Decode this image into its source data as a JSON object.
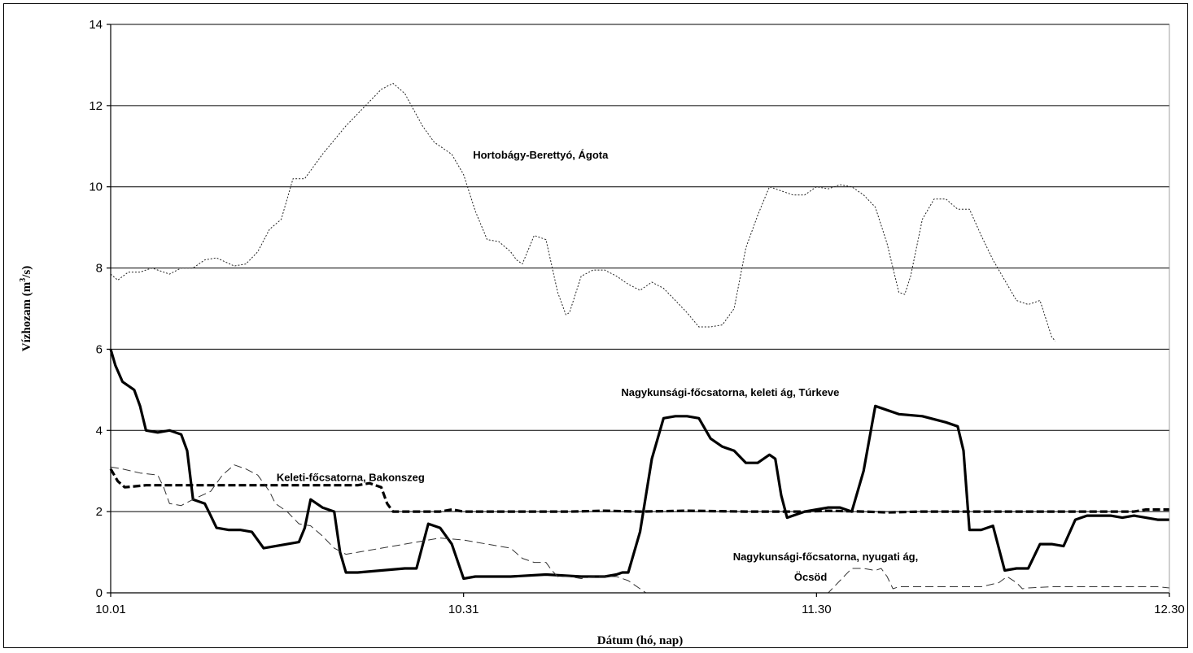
{
  "chart_data": {
    "type": "line",
    "title": "",
    "xlabel": "Dátum (hó, nap)",
    "ylabel": "Vízhozam (m³/s)",
    "ylabel_base": "Vízhozam (m",
    "ylabel_sup": "3",
    "ylabel_end": "/s)",
    "x_range_days": [
      1,
      91
    ],
    "ylim": [
      0,
      14
    ],
    "yticks": [
      0,
      2,
      4,
      6,
      8,
      10,
      12,
      14
    ],
    "xticks": [
      {
        "day": 1,
        "label": "10.01"
      },
      {
        "day": 31,
        "label": "10.31"
      },
      {
        "day": 61,
        "label": "11.30"
      },
      {
        "day": 91,
        "label": "12.30"
      }
    ],
    "grid": "horizontal",
    "legend": "none",
    "series": [
      {
        "name": "Hortobágy-Berettyó, Ágota",
        "style": "dotted",
        "points": [
          [
            1,
            7.85
          ],
          [
            1.6,
            7.7
          ],
          [
            2.5,
            7.9
          ],
          [
            3.5,
            7.9
          ],
          [
            4.5,
            8.0
          ],
          [
            6,
            7.85
          ],
          [
            7,
            8.0
          ],
          [
            8,
            8.0
          ],
          [
            9,
            8.2
          ],
          [
            10,
            8.25
          ],
          [
            11.5,
            8.05
          ],
          [
            12.5,
            8.1
          ],
          [
            13.5,
            8.4
          ],
          [
            14.5,
            8.95
          ],
          [
            15.5,
            9.2
          ],
          [
            16.5,
            10.2
          ],
          [
            17.5,
            10.2
          ],
          [
            19,
            10.8
          ],
          [
            21,
            11.5
          ],
          [
            23,
            12.1
          ],
          [
            24,
            12.4
          ],
          [
            25,
            12.55
          ],
          [
            26,
            12.3
          ],
          [
            27.5,
            11.5
          ],
          [
            28.5,
            11.1
          ],
          [
            30,
            10.8
          ],
          [
            31,
            10.3
          ],
          [
            32,
            9.4
          ],
          [
            33,
            8.7
          ],
          [
            34,
            8.65
          ],
          [
            35,
            8.4
          ],
          [
            35.5,
            8.2
          ],
          [
            36,
            8.1
          ],
          [
            37,
            8.8
          ],
          [
            38,
            8.7
          ],
          [
            39,
            7.4
          ],
          [
            39.7,
            6.85
          ],
          [
            40,
            6.9
          ],
          [
            41,
            7.8
          ],
          [
            42,
            7.95
          ],
          [
            43,
            7.95
          ],
          [
            44,
            7.8
          ],
          [
            45,
            7.6
          ],
          [
            46,
            7.45
          ],
          [
            47,
            7.65
          ],
          [
            48,
            7.5
          ],
          [
            49,
            7.2
          ],
          [
            50,
            6.9
          ],
          [
            51,
            6.55
          ],
          [
            52,
            6.55
          ],
          [
            53,
            6.6
          ],
          [
            54,
            7.0
          ],
          [
            55,
            8.5
          ],
          [
            56,
            9.3
          ],
          [
            57,
            10.0
          ],
          [
            58,
            9.9
          ],
          [
            59,
            9.8
          ],
          [
            60,
            9.8
          ],
          [
            61,
            10.0
          ],
          [
            62,
            9.95
          ],
          [
            63,
            10.05
          ],
          [
            64,
            10.0
          ],
          [
            65,
            9.8
          ],
          [
            66,
            9.5
          ],
          [
            67,
            8.6
          ],
          [
            68,
            7.4
          ],
          [
            68.5,
            7.35
          ],
          [
            69,
            7.8
          ],
          [
            70,
            9.2
          ],
          [
            71,
            9.7
          ],
          [
            72,
            9.7
          ],
          [
            73,
            9.45
          ],
          [
            74,
            9.45
          ],
          [
            75,
            8.8
          ],
          [
            76,
            8.2
          ],
          [
            77,
            7.7
          ],
          [
            78,
            7.2
          ],
          [
            79,
            7.1
          ],
          [
            80,
            7.2
          ],
          [
            81,
            6.3
          ],
          [
            81.3,
            6.2
          ]
        ]
      },
      {
        "name": "Nagykunsági-főcsatorna, keleti ág, Túrkeve",
        "style": "thick-solid",
        "points": [
          [
            1,
            6.0
          ],
          [
            1.4,
            5.6
          ],
          [
            2,
            5.2
          ],
          [
            3,
            5.0
          ],
          [
            3.5,
            4.6
          ],
          [
            4,
            4.0
          ],
          [
            5,
            3.95
          ],
          [
            6,
            4.0
          ],
          [
            7,
            3.9
          ],
          [
            7.5,
            3.5
          ],
          [
            8,
            2.3
          ],
          [
            9,
            2.2
          ],
          [
            9.5,
            1.9
          ],
          [
            10,
            1.6
          ],
          [
            11,
            1.55
          ],
          [
            12,
            1.55
          ],
          [
            13,
            1.5
          ],
          [
            14,
            1.1
          ],
          [
            15,
            1.15
          ],
          [
            16,
            1.2
          ],
          [
            17,
            1.25
          ],
          [
            17.5,
            1.6
          ],
          [
            18,
            2.3
          ],
          [
            19,
            2.1
          ],
          [
            20,
            2.0
          ],
          [
            20.5,
            1.0
          ],
          [
            21,
            0.5
          ],
          [
            22,
            0.5
          ],
          [
            24,
            0.55
          ],
          [
            26,
            0.6
          ],
          [
            27,
            0.6
          ],
          [
            28,
            1.7
          ],
          [
            29,
            1.6
          ],
          [
            30,
            1.2
          ],
          [
            31,
            0.35
          ],
          [
            32,
            0.4
          ],
          [
            35,
            0.4
          ],
          [
            38,
            0.45
          ],
          [
            41,
            0.4
          ],
          [
            43,
            0.4
          ],
          [
            44,
            0.45
          ],
          [
            44.5,
            0.5
          ],
          [
            45,
            0.5
          ],
          [
            46,
            1.5
          ],
          [
            47,
            3.3
          ],
          [
            48,
            4.3
          ],
          [
            49,
            4.35
          ],
          [
            50,
            4.35
          ],
          [
            51,
            4.3
          ],
          [
            52,
            3.8
          ],
          [
            53,
            3.6
          ],
          [
            54,
            3.5
          ],
          [
            55,
            3.2
          ],
          [
            56,
            3.2
          ],
          [
            57,
            3.4
          ],
          [
            57.5,
            3.3
          ],
          [
            58,
            2.4
          ],
          [
            58.5,
            1.85
          ],
          [
            59,
            1.9
          ],
          [
            60,
            2.0
          ],
          [
            61,
            2.05
          ],
          [
            62,
            2.1
          ],
          [
            63,
            2.1
          ],
          [
            64,
            2.0
          ],
          [
            65,
            3.0
          ],
          [
            66,
            4.6
          ],
          [
            67,
            4.5
          ],
          [
            68,
            4.4
          ],
          [
            70,
            4.35
          ],
          [
            72,
            4.2
          ],
          [
            73,
            4.1
          ],
          [
            73.5,
            3.5
          ],
          [
            74,
            1.55
          ],
          [
            75,
            1.55
          ],
          [
            76,
            1.65
          ],
          [
            77,
            0.55
          ],
          [
            78,
            0.6
          ],
          [
            79,
            0.6
          ],
          [
            80,
            1.2
          ],
          [
            81,
            1.2
          ],
          [
            82,
            1.15
          ],
          [
            83,
            1.8
          ],
          [
            84,
            1.9
          ],
          [
            86,
            1.9
          ],
          [
            87,
            1.85
          ],
          [
            88,
            1.9
          ],
          [
            89,
            1.85
          ],
          [
            90,
            1.8
          ],
          [
            91,
            1.8
          ]
        ]
      },
      {
        "name": "Keleti-főcsatorna, Bakonszeg",
        "style": "thick-dashed",
        "points": [
          [
            1,
            3.05
          ],
          [
            1.6,
            2.75
          ],
          [
            2.2,
            2.6
          ],
          [
            4,
            2.65
          ],
          [
            22,
            2.65
          ],
          [
            23,
            2.7
          ],
          [
            24,
            2.6
          ],
          [
            24.5,
            2.2
          ],
          [
            25,
            2.0
          ],
          [
            27,
            2.0
          ],
          [
            29,
            2.0
          ],
          [
            30,
            2.05
          ],
          [
            31,
            2.0
          ],
          [
            33,
            2.0
          ],
          [
            35,
            2.0
          ],
          [
            38,
            2.0
          ],
          [
            40,
            2.0
          ],
          [
            43,
            2.02
          ],
          [
            46,
            2.0
          ],
          [
            50,
            2.02
          ],
          [
            55,
            2.0
          ],
          [
            60,
            2.0
          ],
          [
            62,
            2.02
          ],
          [
            65,
            2.0
          ],
          [
            67,
            1.98
          ],
          [
            70,
            2.0
          ],
          [
            75,
            2.0
          ],
          [
            80,
            2.0
          ],
          [
            85,
            2.0
          ],
          [
            88,
            2.0
          ],
          [
            89,
            2.05
          ],
          [
            91,
            2.05
          ]
        ]
      },
      {
        "name": "Nagykunsági-főcsatorna, nyugati ág, Öcsöd",
        "style": "thin-dashed",
        "points": [
          [
            1,
            3.1
          ],
          [
            2,
            3.05
          ],
          [
            3.5,
            2.95
          ],
          [
            5,
            2.9
          ],
          [
            5.5,
            2.6
          ],
          [
            6,
            2.2
          ],
          [
            7,
            2.15
          ],
          [
            8,
            2.3
          ],
          [
            9.5,
            2.5
          ],
          [
            10.5,
            2.9
          ],
          [
            11.5,
            3.15
          ],
          [
            12.5,
            3.05
          ],
          [
            13.5,
            2.9
          ],
          [
            14.5,
            2.5
          ],
          [
            15,
            2.2
          ],
          [
            16,
            2.0
          ],
          [
            17,
            1.7
          ],
          [
            18,
            1.65
          ],
          [
            19,
            1.4
          ],
          [
            20,
            1.1
          ],
          [
            21,
            0.95
          ],
          [
            23,
            1.05
          ],
          [
            25,
            1.15
          ],
          [
            27,
            1.25
          ],
          [
            29,
            1.35
          ],
          [
            31,
            1.3
          ],
          [
            33,
            1.2
          ],
          [
            35,
            1.1
          ],
          [
            36,
            0.85
          ],
          [
            37,
            0.75
          ],
          [
            38,
            0.75
          ],
          [
            38.5,
            0.55
          ],
          [
            39,
            0.4
          ],
          [
            40,
            0.4
          ],
          [
            41,
            0.35
          ],
          [
            42,
            0.4
          ],
          [
            43,
            0.4
          ],
          [
            44,
            0.4
          ],
          [
            45,
            0.3
          ],
          [
            46,
            0.1
          ],
          [
            46.5,
            0.0
          ],
          [
            48,
            0.0
          ],
          [
            55,
            0.0
          ],
          [
            60,
            0.0
          ],
          [
            62,
            0.0
          ],
          [
            63,
            0.3
          ],
          [
            64,
            0.6
          ],
          [
            65,
            0.6
          ],
          [
            66,
            0.55
          ],
          [
            66.5,
            0.6
          ],
          [
            67,
            0.4
          ],
          [
            67.5,
            0.1
          ],
          [
            68,
            0.15
          ],
          [
            72,
            0.15
          ],
          [
            75,
            0.15
          ],
          [
            76.5,
            0.25
          ],
          [
            77.2,
            0.4
          ],
          [
            78,
            0.25
          ],
          [
            78.5,
            0.1
          ],
          [
            79,
            0.12
          ],
          [
            81,
            0.15
          ],
          [
            85,
            0.15
          ],
          [
            88,
            0.15
          ],
          [
            90,
            0.15
          ],
          [
            91,
            0.12
          ]
        ]
      }
    ],
    "annotations": [
      {
        "text": "Hortobágy-Berettyó, Ágota",
        "day": 31.8,
        "value": 10.7
      },
      {
        "text": "Nagykunsági-főcsatorna, keleti ág, Túrkeve",
        "day": 44.4,
        "value": 4.85
      },
      {
        "text": "Keleti-főcsatorna, Bakonszeg",
        "day": 15.1,
        "value": 2.75
      },
      {
        "text": "Nagykunsági-főcsatorna, nyugati ág,",
        "day": 53.9,
        "value": 0.8
      },
      {
        "text": "Öcsöd",
        "day": 59.1,
        "value": 0.3
      }
    ]
  }
}
